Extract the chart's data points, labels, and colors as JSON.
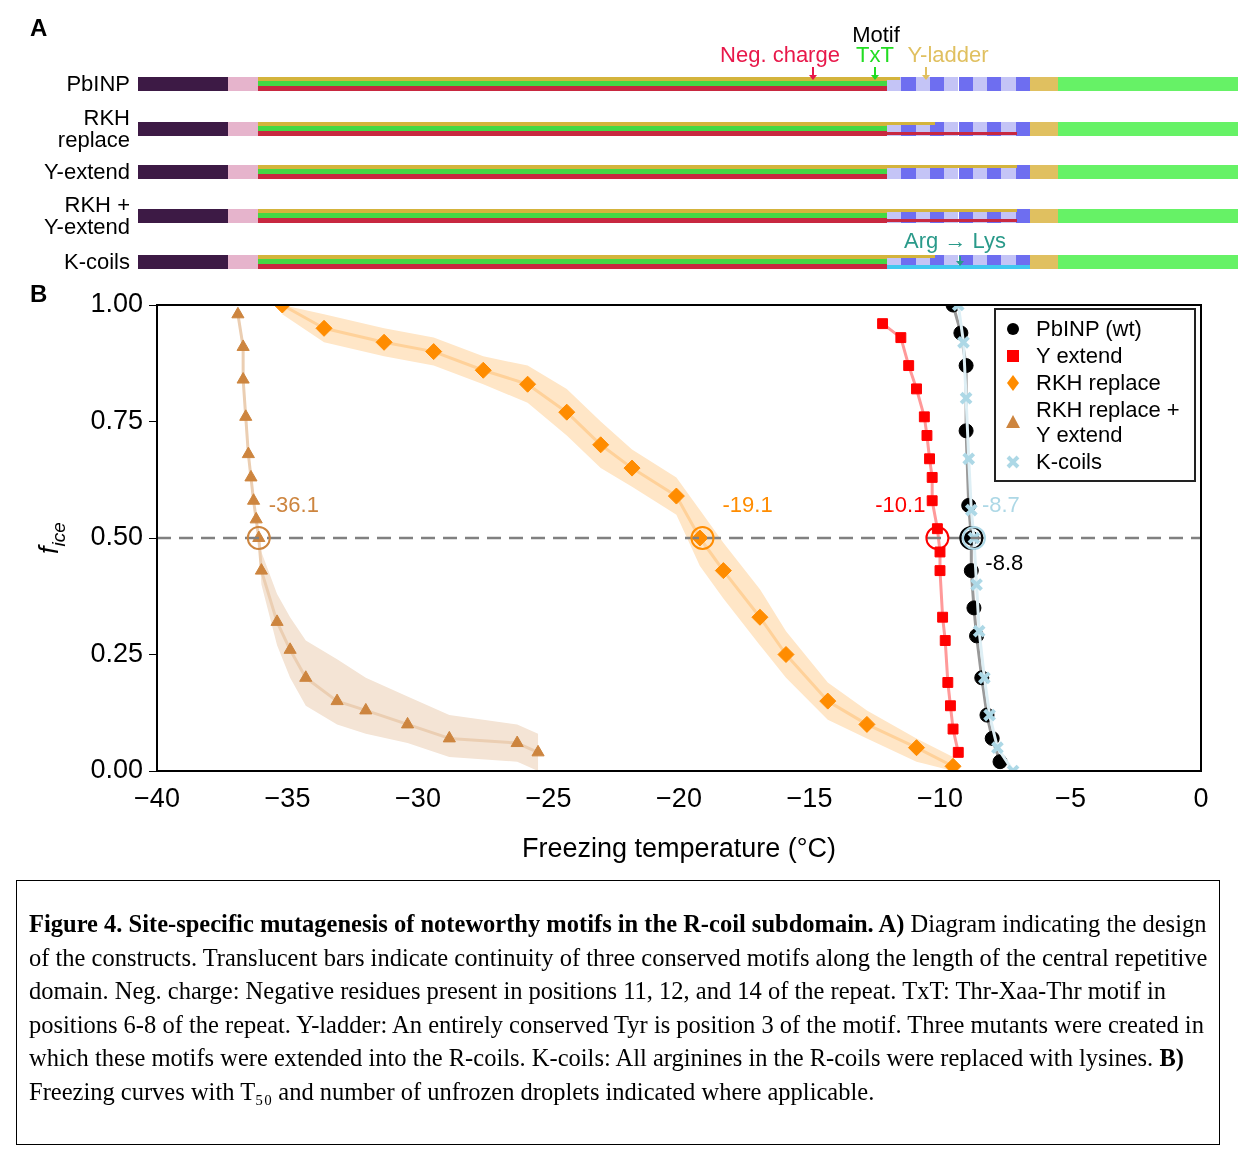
{
  "chart_data": [
    {
      "type": "other",
      "title": "A",
      "categories": [
        "PbINP",
        "RKH replace",
        "Y-extend",
        "RKH + Y-extend",
        "K-coils"
      ],
      "annotations": [
        "Motif",
        "Neg. charge",
        "TxT",
        "Y-ladder",
        "Arg → Lys"
      ]
    },
    {
      "type": "line",
      "title": "B",
      "xlabel": "Freezing temperature (°C)",
      "ylabel": "f$_{ice}$",
      "xlim": [
        -40,
        0
      ],
      "xticks": [
        {
          "value": -40,
          "label": "−40"
        },
        {
          "value": -35,
          "label": "−35"
        },
        {
          "value": -30,
          "label": "−30"
        },
        {
          "value": -25,
          "label": "−25"
        },
        {
          "value": -20,
          "label": "−20"
        },
        {
          "value": -15,
          "label": "−15"
        },
        {
          "value": -10,
          "label": "−10"
        },
        {
          "value": -5,
          "label": "−5"
        },
        0
      ],
      "ylim": [
        0,
        1
      ],
      "yticks": [
        {
          "value": 0,
          "label": "0.00"
        },
        {
          "value": 0.25,
          "label": "0.25"
        },
        {
          "value": 0.5,
          "label": "0.50"
        },
        {
          "value": 0.75,
          "label": "0.75"
        },
        {
          "value": 1,
          "label": "1.00"
        }
      ],
      "legend": "top right",
      "ref_lines": [
        {
          "axis": "y",
          "value": 0.5,
          "color": "#808080",
          "line_style": "dashed"
        }
      ],
      "series": [
        {
          "name": "PbINP (wt)",
          "color": "#000000",
          "marker": "circle",
          "x": [
            -9.5,
            -9.2,
            -9.0,
            -9.0,
            -8.9,
            -8.8,
            -8.8,
            -8.7,
            -8.6,
            -8.4,
            -8.2,
            -8.0,
            -7.7
          ],
          "values": [
            1.0,
            0.94,
            0.87,
            0.73,
            0.57,
            0.5,
            0.43,
            0.35,
            0.29,
            0.2,
            0.12,
            0.07,
            0.02
          ]
        },
        {
          "name": "Y extend",
          "color": "#ff0000",
          "marker": "square",
          "x": [
            -12.2,
            -11.5,
            -11.2,
            -10.9,
            -10.6,
            -10.5,
            -10.4,
            -10.3,
            -10.3,
            -10.1,
            -10.0,
            -10.0,
            -9.9,
            -9.8,
            -9.7,
            -9.6,
            -9.5,
            -9.3
          ],
          "values": [
            0.96,
            0.93,
            0.87,
            0.82,
            0.76,
            0.72,
            0.67,
            0.63,
            0.58,
            0.52,
            0.47,
            0.43,
            0.33,
            0.28,
            0.19,
            0.14,
            0.09,
            0.04
          ]
        },
        {
          "name": "RKH replace",
          "color": "#ff8c00",
          "marker": "diamond",
          "x": [
            -35.2,
            -33.6,
            -31.3,
            -29.4,
            -27.5,
            -25.8,
            -24.3,
            -23.0,
            -21.8,
            -20.1,
            -19.2,
            -18.3,
            -16.9,
            -15.9,
            -14.3,
            -12.8,
            -10.9,
            -9.5
          ],
          "values": [
            1.0,
            0.95,
            0.92,
            0.9,
            0.86,
            0.83,
            0.77,
            0.7,
            0.65,
            0.59,
            0.5,
            0.43,
            0.33,
            0.25,
            0.15,
            0.1,
            0.05,
            0.01
          ],
          "upper": [
            1.0,
            0.98,
            0.95,
            0.93,
            0.89,
            0.87,
            0.82,
            0.75,
            0.69,
            0.63,
            0.56,
            0.49,
            0.39,
            0.3,
            0.19,
            0.13,
            0.07,
            0.03
          ],
          "lower": [
            0.98,
            0.92,
            0.89,
            0.87,
            0.83,
            0.79,
            0.72,
            0.65,
            0.61,
            0.55,
            0.44,
            0.37,
            0.27,
            0.2,
            0.11,
            0.07,
            0.02,
            0.0
          ]
        },
        {
          "name": "RKH replace + Y extend",
          "color": "#cd853f",
          "marker": "triangle",
          "x": [
            -36.9,
            -36.7,
            -36.7,
            -36.6,
            -36.5,
            -36.4,
            -36.3,
            -36.2,
            -36.1,
            -36.0,
            -35.4,
            -34.9,
            -34.3,
            -33.1,
            -32.0,
            -30.4,
            -28.8,
            -26.2,
            -25.4
          ],
          "values": [
            0.98,
            0.91,
            0.84,
            0.76,
            0.68,
            0.63,
            0.58,
            0.54,
            0.5,
            0.43,
            0.32,
            0.26,
            0.2,
            0.15,
            0.13,
            0.1,
            0.07,
            0.06,
            0.04
          ],
          "upper": [
            0.99,
            0.92,
            0.85,
            0.77,
            0.7,
            0.64,
            0.59,
            0.55,
            0.51,
            0.47,
            0.38,
            0.33,
            0.28,
            0.24,
            0.2,
            0.16,
            0.12,
            0.1,
            0.08
          ],
          "lower": [
            0.97,
            0.9,
            0.83,
            0.75,
            0.67,
            0.62,
            0.57,
            0.53,
            0.49,
            0.4,
            0.27,
            0.2,
            0.14,
            0.1,
            0.08,
            0.06,
            0.03,
            0.02,
            0.0
          ]
        },
        {
          "name": "K-coils",
          "color": "#add8e6",
          "marker": "cross",
          "x": [
            -9.3,
            -9.1,
            -9.0,
            -8.9,
            -8.8,
            -8.7,
            -8.6,
            -8.5,
            -8.3,
            -8.1,
            -7.8,
            -7.2
          ],
          "values": [
            1.0,
            0.92,
            0.8,
            0.67,
            0.56,
            0.5,
            0.4,
            0.3,
            0.2,
            0.12,
            0.05,
            0.0
          ]
        }
      ],
      "annotations": [
        {
          "text": "-8.8",
          "x": -8.8,
          "y": 0.5
        },
        {
          "text": "-10.1",
          "x": -10.1,
          "y": 0.5
        },
        {
          "text": "-19.1",
          "x": -19.1,
          "y": 0.5
        },
        {
          "text": "-36.1",
          "x": -36.1,
          "y": 0.5
        },
        {
          "text": "-8.7",
          "x": -8.7,
          "y": 0.5
        },
        "Figure 4. Site-specific mutagenesis of noteworthy motifs in the R-coil subdomain. A)",
        " Diagram indicating the design of the constructs. Translucent bars indicate continuity of three conserved motifs along the length of the central repetitive domain. Neg. charge: Negative residues present in positions 11, 12, and 14 of the repeat. TxT: Thr-Xaa-Thr motif in positions 6-8 of the repeat. Y-ladder: An entirely conserved Tyr is position 3 of the motif. Three mutants were created in which these motifs were extended into the R-coils. K-coils: All arginines in the R-coils were replaced with lysines. ",
        "B)",
        " Freezing curves with T₅₀ and number of unfrozen droplets indicated where applicable."
      ]
    }
  ]
}
